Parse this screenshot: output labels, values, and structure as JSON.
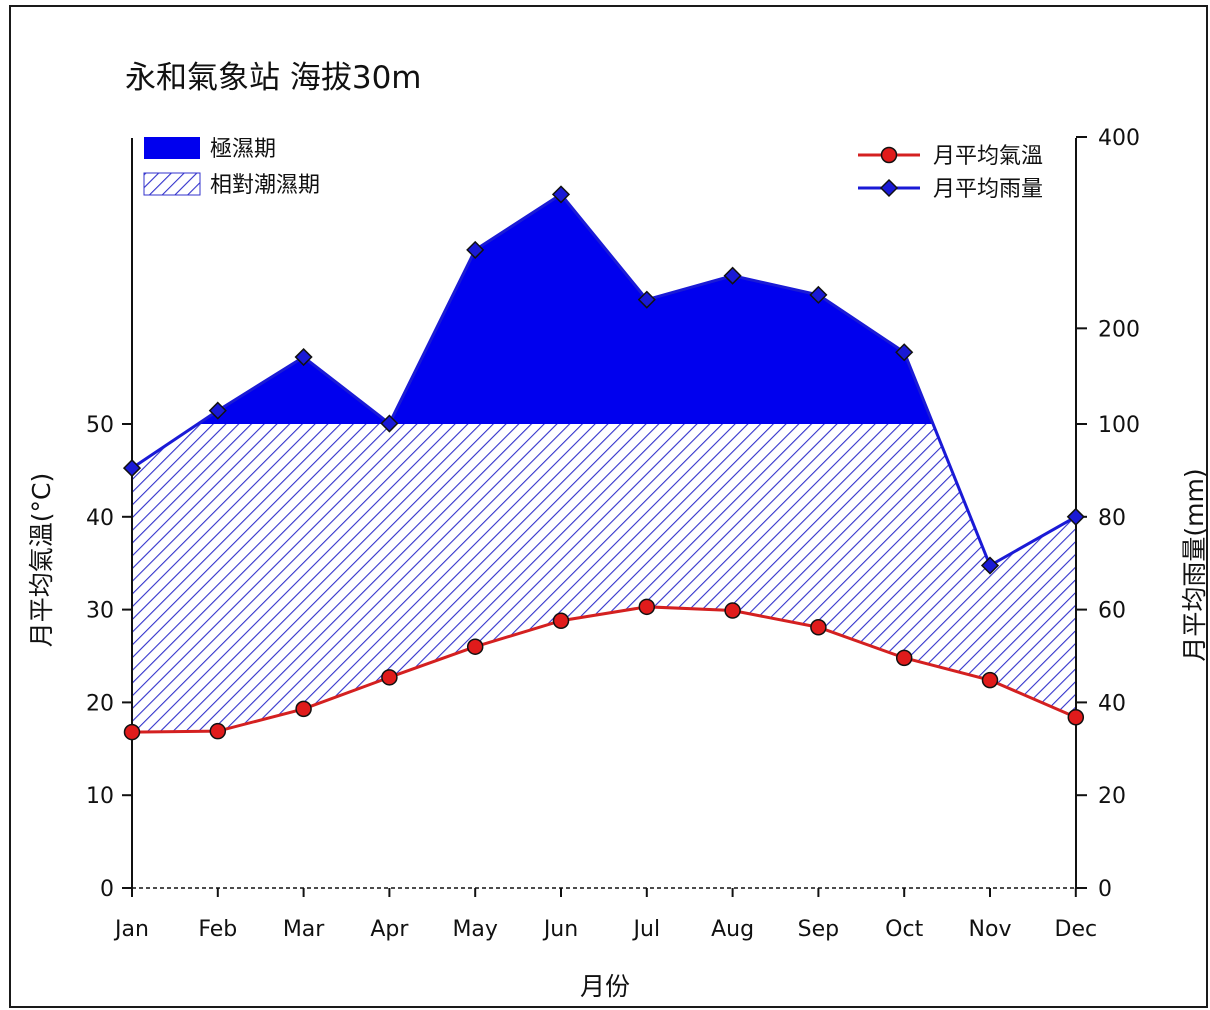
{
  "chart_data": {
    "type": "line",
    "title": "永和氣象站 海拔30m",
    "xlabel": "月份",
    "ylabel_left": "月平均氣溫(°C)",
    "ylabel_right": "月平均雨量(mm)",
    "categories": [
      "Jan",
      "Feb",
      "Mar",
      "Apr",
      "May",
      "Jun",
      "Jul",
      "Aug",
      "Sep",
      "Oct",
      "Nov",
      "Dec"
    ],
    "left_axis": {
      "ylim": [
        0,
        50
      ],
      "ticks": [
        "0",
        "10",
        "20",
        "30",
        "40",
        "50"
      ]
    },
    "right_axis": {
      "scale": "walter-lieth (linear 0–100, compressed 100–400)",
      "ylim": [
        0,
        400
      ],
      "ticks": [
        "0",
        "20",
        "40",
        "60",
        "80",
        "100",
        "200",
        "400"
      ]
    },
    "series": [
      {
        "name": "月平均氣溫",
        "axis": "left",
        "color": "#d42020",
        "marker": "circle",
        "values": [
          16.8,
          16.9,
          19.3,
          22.7,
          26.0,
          28.8,
          30.3,
          29.9,
          28.1,
          24.8,
          22.4,
          18.4
        ]
      },
      {
        "name": "月平均雨量",
        "axis": "right",
        "color": "#1a1ad6",
        "marker": "diamond",
        "values": [
          90.5,
          114,
          170,
          100.5,
          282,
          340,
          230,
          255,
          235,
          175,
          69.5,
          80
        ]
      }
    ],
    "legend": {
      "left": [
        {
          "label": "極濕期",
          "style": "solid",
          "color": "#0000ee"
        },
        {
          "label": "相對潮濕期",
          "style": "hatched",
          "color": "#2a2ad8"
        }
      ],
      "right": [
        {
          "label": "月平均氣溫",
          "series": 0
        },
        {
          "label": "月平均雨量",
          "series": 1
        }
      ],
      "position": "top"
    },
    "grid": false
  }
}
